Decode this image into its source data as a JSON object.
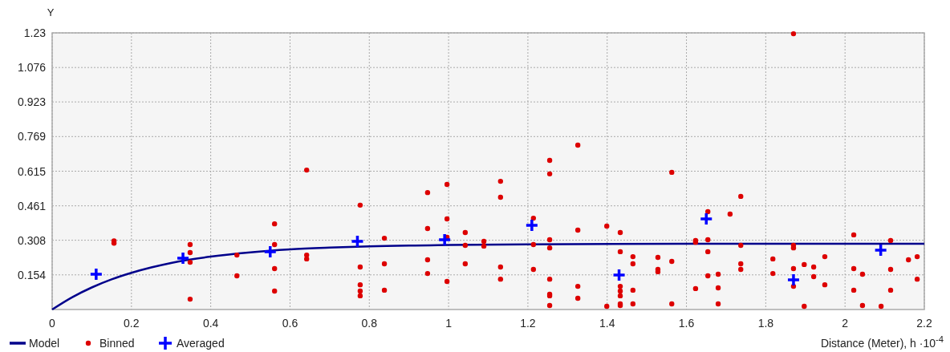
{
  "chart_data": {
    "type": "scatter",
    "ylabel": "Y",
    "xlabel": "Distance (Meter), h ·10$^{-4}$",
    "xlim": [
      0,
      2.2
    ],
    "ylim": [
      0,
      1.23
    ],
    "xticks": [
      0,
      0.2,
      0.4,
      0.6,
      0.8,
      1,
      1.2,
      1.4,
      1.6,
      1.8,
      2,
      2.2
    ],
    "yticks": [
      0.154,
      0.308,
      0.461,
      0.615,
      0.769,
      0.923,
      1.076,
      1.23
    ],
    "grid": true,
    "legend": "bottom left",
    "series": [
      {
        "name": "Model",
        "type": "line",
        "color": "#00008b",
        "marker": "none",
        "line_style": "solid",
        "x": [
          0,
          0.05,
          0.1,
          0.15,
          0.2,
          0.25,
          0.3,
          0.4,
          0.5,
          0.6,
          0.7,
          0.8,
          1,
          1.2,
          1.6,
          2.2
        ],
        "values": [
          0,
          0.054,
          0.098,
          0.134,
          0.163,
          0.187,
          0.207,
          0.235,
          0.254,
          0.267,
          0.275,
          0.281,
          0.287,
          0.29,
          0.292,
          0.292
        ]
      },
      {
        "name": "Binned",
        "color": "#dd0000",
        "marker": "circle",
        "x": [
          0.156,
          0.156,
          0.348,
          0.348,
          0.348,
          0.348,
          0.466,
          0.466,
          0.561,
          0.561,
          0.561,
          0.561,
          0.642,
          0.642,
          0.642,
          0.777,
          0.777,
          0.777,
          0.777,
          0.777,
          0.838,
          0.838,
          0.838,
          0.947,
          0.947,
          0.947,
          0.947,
          0.996,
          0.996,
          0.996,
          0.996,
          1.042,
          1.042,
          1.042,
          1.089,
          1.089,
          1.131,
          1.131,
          1.131,
          1.131,
          1.214,
          1.214,
          1.214,
          1.255,
          1.255,
          1.255,
          1.255,
          1.255,
          1.255,
          1.255,
          1.255,
          1.326,
          1.326,
          1.326,
          1.326,
          1.399,
          1.399,
          1.433,
          1.433,
          1.433,
          1.433,
          1.433,
          1.433,
          1.433,
          1.465,
          1.465,
          1.465,
          1.465,
          1.528,
          1.528,
          1.528,
          1.563,
          1.563,
          1.563,
          1.623,
          1.623,
          1.623,
          1.654,
          1.654,
          1.654,
          1.654,
          1.68,
          1.68,
          1.68,
          1.71,
          1.737,
          1.737,
          1.737,
          1.737,
          1.818,
          1.818,
          1.87,
          1.87,
          1.87,
          1.87,
          1.87,
          1.897,
          1.897,
          1.921,
          1.921,
          1.949,
          1.949,
          2.022,
          2.022,
          2.022,
          2.044,
          2.044,
          2.091,
          2.115,
          2.115,
          2.115,
          2.16,
          2.182,
          2.182
        ],
        "values": [
          0.305,
          0.295,
          0.289,
          0.253,
          0.21,
          0.046,
          0.242,
          0.15,
          0.381,
          0.289,
          0.182,
          0.082,
          0.62,
          0.242,
          0.225,
          0.464,
          0.189,
          0.11,
          0.082,
          0.061,
          0.317,
          0.203,
          0.086,
          0.52,
          0.36,
          0.221,
          0.16,
          0.556,
          0.403,
          0.321,
          0.125,
          0.342,
          0.285,
          0.203,
          0.303,
          0.282,
          0.57,
          0.499,
          0.189,
          0.135,
          0.406,
          0.289,
          0.178,
          0.663,
          0.603,
          0.31,
          0.274,
          0.135,
          0.068,
          0.061,
          0.018,
          0.731,
          0.353,
          0.103,
          0.05,
          0.371,
          0.014,
          0.342,
          0.257,
          0.103,
          0.082,
          0.061,
          0.025,
          0.018,
          0.235,
          0.203,
          0.086,
          0.025,
          0.232,
          0.178,
          0.168,
          0.61,
          0.214,
          0.025,
          0.307,
          0.299,
          0.093,
          0.435,
          0.31,
          0.257,
          0.15,
          0.157,
          0.096,
          0.025,
          0.424,
          0.503,
          0.285,
          0.203,
          0.178,
          0.225,
          0.16,
          1.226,
          0.285,
          0.274,
          0.182,
          0.103,
          0.2,
          0.014,
          0.189,
          0.146,
          0.235,
          0.11,
          0.332,
          0.182,
          0.086,
          0.157,
          0.018,
          0.014,
          0.307,
          0.178,
          0.086,
          0.221,
          0.235,
          0.135
        ]
      },
      {
        "name": "Averaged",
        "color": "#0000ff",
        "marker": "cross",
        "x": [
          0.111,
          0.33,
          0.55,
          0.77,
          0.99,
          1.21,
          1.43,
          1.65,
          1.87,
          2.09
        ],
        "values": [
          0.157,
          0.228,
          0.257,
          0.303,
          0.31,
          0.374,
          0.153,
          0.403,
          0.132,
          0.264
        ]
      }
    ]
  }
}
